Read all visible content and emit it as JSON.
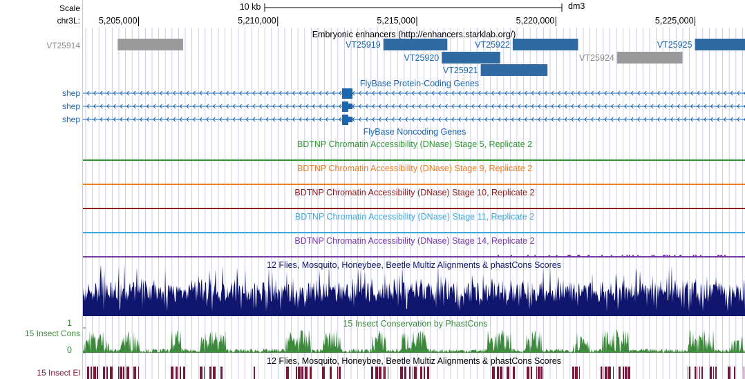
{
  "ruler": {
    "scale_label": "Scale",
    "chrom_label": "chr3L:",
    "scale_bar_text": "10 kb",
    "assembly": "dm3",
    "positions": [
      {
        "text": "5,205,000",
        "coord": 5205000
      },
      {
        "text": "5,210,000",
        "coord": 5210000
      },
      {
        "text": "5,215,000",
        "coord": 5215000
      },
      {
        "text": "5,220,000",
        "coord": 5220000
      },
      {
        "text": "5,225,000",
        "coord": 5225000
      }
    ]
  },
  "window": {
    "start": 5203000,
    "end": 5226800
  },
  "enhancers": {
    "title": "Embryonic enhancers (http://enhancers.starklab.org/)",
    "items": [
      {
        "name": "VT25914",
        "start": 5204250,
        "end": 5206600,
        "row": 0,
        "status": "gray"
      },
      {
        "name": "VT25919",
        "start": 5213800,
        "end": 5216100,
        "row": 0,
        "status": "blue"
      },
      {
        "name": "VT25920",
        "start": 5215900,
        "end": 5218000,
        "row": 1,
        "status": "blue"
      },
      {
        "name": "VT25921",
        "start": 5217300,
        "end": 5219700,
        "row": 2,
        "status": "blue"
      },
      {
        "name": "VT25922",
        "start": 5218450,
        "end": 5220800,
        "row": 0,
        "status": "blue"
      },
      {
        "name": "VT25924",
        "start": 5222200,
        "end": 5224550,
        "row": 1,
        "status": "gray"
      },
      {
        "name": "VT25925",
        "start": 5225000,
        "end": 5226800,
        "row": 0,
        "status": "blue"
      }
    ]
  },
  "protein_coding": {
    "title": "FlyBase Protein-Coding Genes",
    "genes": [
      {
        "name": "shep"
      },
      {
        "name": "shep"
      },
      {
        "name": "shep"
      }
    ]
  },
  "noncoding": {
    "title": "FlyBase Noncoding Genes"
  },
  "dnase_tracks": [
    {
      "title": "BDTNP Chromatin Accessibility (DNase) Stage 5, Replicate 2",
      "color": "#2e9b2e"
    },
    {
      "title": "BDTNP Chromatin Accessibility (DNase) Stage 9, Replicate 2",
      "color": "#ef7a1a"
    },
    {
      "title": "BDTNP Chromatin Accessibility (DNase) Stage 10, Replicate 2",
      "color": "#8b1a1a"
    },
    {
      "title": "BDTNP Chromatin Accessibility (DNase) Stage 11, Replicate 2",
      "color": "#3fa8d8"
    },
    {
      "title": "BDTNP Chromatin Accessibility (DNase) Stage 14, Replicate 2",
      "color": "#7a3aa8"
    }
  ],
  "multiz": {
    "title": "12 Flies, Mosquito, Honeybee, Beetle Multiz Alignments & phastCons Scores"
  },
  "cons": {
    "title": "15 Insect Conservation by PhastCons",
    "label": "15 Insect Cons",
    "axis_max": "1",
    "axis_min": "0"
  },
  "elements": {
    "title": "12 Flies, Mosquito, Honeybee, Beetle Multiz Alignments & phastCons Scores",
    "label": "15 Insect El"
  },
  "colors": {
    "enhancer_blue": "#2f6aa3",
    "enhancer_gray": "#999999",
    "gene_blue": "#1a66b0",
    "multiz_navy": "#10156e",
    "cons_green": "#3d8a3d",
    "el_maroon": "#7a1838",
    "grid": "#c8cdf0",
    "panel_border": "#f2b4b4"
  }
}
